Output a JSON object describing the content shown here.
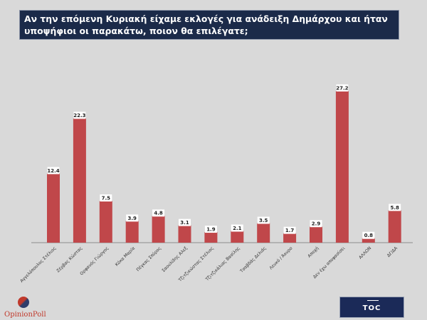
{
  "chart_data": {
    "type": "bar",
    "title": "Αν την επόμενη Κυριακή είχαμε εκλογές για ανάδειξη Δημάρχου και ήταν υποψήφιοι οι παρακάτω, ποιον θα επιλέγατε;",
    "xlabel": "",
    "ylabel": "",
    "ylim": [
      0,
      30
    ],
    "grid": false,
    "categories": [
      "Αγγελόπουλος Στέλιος",
      "Ζέρβας Κώστας",
      "Ορφανός Γιώργος",
      "Κόκα Μαρία",
      "Πέγκας Σπύρος",
      "Σαουλίδης Αλεξ",
      "Τζιτζικώστας Στέλιος",
      "Τζιτζικάλιας Βασίλης",
      "Τσαβδάς Δελιάς",
      "Λευκό / Άκυρο",
      "Αποχή",
      "Δεν έχω αποφασίσει",
      "ΑΛΛΟΝ",
      "ΔΓ/ΔΑ"
    ],
    "values": [
      12.4,
      22.3,
      7.5,
      3.9,
      4.8,
      3.1,
      1.9,
      2.1,
      3.5,
      1.7,
      2.9,
      27.2,
      0.8,
      5.8
    ],
    "value_labels": [
      "12.4",
      "22.3",
      "7.5",
      "3.9",
      "4.8",
      "3.1",
      "1.9",
      "2.1",
      "3.5",
      "1.7",
      "2.9",
      "27.2",
      "0.8",
      "5.8"
    ],
    "bar_color": "#c0474a"
  },
  "logos": {
    "left": "OpinionPoll",
    "right": "TOC"
  },
  "colors": {
    "title_bg": "#1b2a49",
    "background": "#d9d9d9",
    "bar": "#c0474a"
  }
}
